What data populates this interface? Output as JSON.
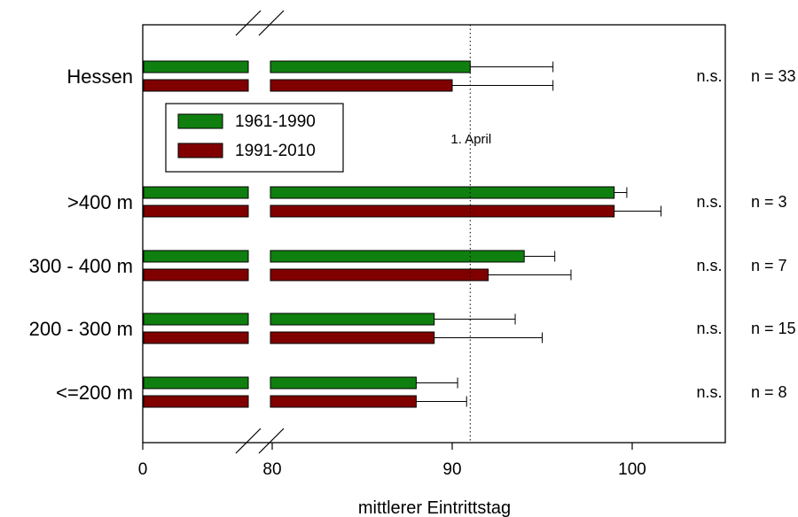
{
  "chart_data": {
    "type": "bar",
    "orientation": "horizontal",
    "xlabel": "mittlerer Eintrittstag",
    "x_axis_break": [
      0,
      80
    ],
    "xlim": [
      0,
      105
    ],
    "xticks": [
      {
        "value": 0,
        "label": "0"
      },
      {
        "value": 80,
        "label": "80"
      },
      {
        "value": 90,
        "label": "90"
      },
      {
        "value": 100,
        "label": "100"
      }
    ],
    "reference_line": {
      "value": 91,
      "label": "1. April",
      "style": "dotted"
    },
    "legend": {
      "position": "top-left",
      "entries": [
        "1961-1990",
        "1991-2010"
      ]
    },
    "series": [
      {
        "name": "1961-1990",
        "color": "#0f800f"
      },
      {
        "name": "1991-2010",
        "color": "#800000"
      }
    ],
    "groups": [
      {
        "label": "Hessen",
        "significance": "n.s.",
        "n": "n = 33",
        "values": [
          91,
          90
        ],
        "error_upper": [
          95.6,
          95.6
        ]
      },
      {
        "label": ">400 m",
        "significance": "n.s.",
        "n": "n =   3",
        "values": [
          99,
          99
        ],
        "error_upper": [
          99.7,
          101.6
        ]
      },
      {
        "label": "300 - 400 m",
        "significance": "n.s.",
        "n": "n =   7",
        "values": [
          94,
          92
        ],
        "error_upper": [
          95.7,
          96.6
        ]
      },
      {
        "label": "200 - 300 m",
        "significance": "n.s.",
        "n": "n = 15",
        "values": [
          89,
          89
        ],
        "error_upper": [
          93.5,
          95
        ]
      },
      {
        "label": "<=200 m",
        "significance": "n.s.",
        "n": "n =   8",
        "values": [
          88,
          88
        ],
        "error_upper": [
          90.3,
          90.8
        ]
      }
    ]
  }
}
